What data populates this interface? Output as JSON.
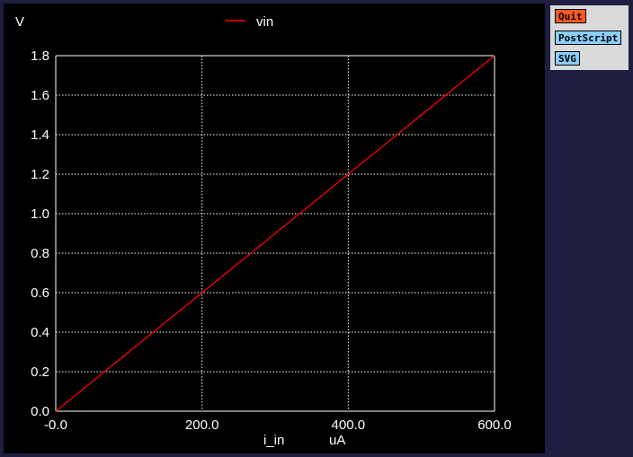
{
  "buttons": {
    "quit": "Quit",
    "postscript": "PostScript",
    "svg": "SVG"
  },
  "colors": {
    "quit_bg": "#ff5a1e",
    "button_bg": "#87cefa",
    "series": "#ff0000",
    "grid": "#ffffff",
    "background": "#000000"
  },
  "chart_data": {
    "type": "line",
    "xlabel": "i_in",
    "xunit": "uA",
    "ylabel": "V",
    "xlim": [
      0,
      600
    ],
    "ylim": [
      0,
      1.8
    ],
    "xticks": [
      0,
      200,
      400,
      600
    ],
    "xtick_labels": [
      "-0.0",
      "200.0",
      "400.0",
      "600.0"
    ],
    "yticks": [
      0,
      0.2,
      0.4,
      0.6,
      0.8,
      1.0,
      1.2,
      1.4,
      1.6,
      1.8
    ],
    "ytick_labels": [
      "0.0",
      "0.2",
      "0.4",
      "0.6",
      "0.8",
      "1.0",
      "1.2",
      "1.4",
      "1.6",
      "1.8"
    ],
    "grid": true,
    "legend": "top-center",
    "series": [
      {
        "name": "vin",
        "color": "#ff0000",
        "x": [
          0,
          100,
          200,
          300,
          400,
          500,
          600
        ],
        "y": [
          0,
          0.3,
          0.6,
          0.9,
          1.2,
          1.5,
          1.8
        ]
      }
    ]
  }
}
